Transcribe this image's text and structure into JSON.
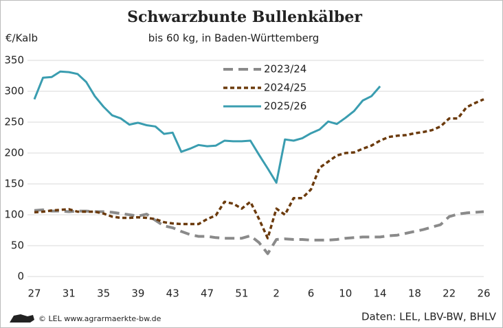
{
  "chart_data": {
    "type": "line",
    "title": "Schwarzbunte Bullenkälber",
    "subtitle": "bis 60 kg, in Baden-Württemberg",
    "y_label": "€/Kalb",
    "footer": "© LEL www.agrarmaerkte-bw.de",
    "source": "Daten: LEL, LBV-BW, BHLV",
    "categories": [
      "27",
      null,
      null,
      null,
      "31",
      null,
      null,
      null,
      "35",
      null,
      null,
      null,
      "39",
      null,
      null,
      null,
      "43",
      null,
      null,
      null,
      "47",
      null,
      null,
      null,
      "51",
      null,
      null,
      null,
      "2",
      null,
      null,
      null,
      "6",
      null,
      null,
      null,
      "10",
      null,
      null,
      null,
      "14",
      null,
      null,
      null,
      "18",
      null,
      null,
      null,
      "22",
      null,
      null,
      null,
      "26"
    ],
    "ylim": [
      0,
      350
    ],
    "yticks": [
      0,
      50,
      100,
      150,
      200,
      250,
      300,
      350
    ],
    "grid": true,
    "legend": "top-center",
    "series": [
      {
        "name": "2023/24",
        "color": "#8a8a8a",
        "dash": "dashed",
        "values": [
          107,
          108,
          106,
          106,
          105,
          106,
          106,
          105,
          105,
          104,
          102,
          100,
          98,
          101,
          91,
          82,
          79,
          73,
          68,
          65,
          65,
          63,
          62,
          62,
          62,
          66,
          55,
          37,
          60,
          61,
          60,
          60,
          59,
          59,
          59,
          60,
          62,
          63,
          64,
          64,
          64,
          66,
          67,
          70,
          73,
          76,
          80,
          84,
          97,
          101,
          103,
          104,
          105
        ]
      },
      {
        "name": "2024/25",
        "color": "#6b3a0c",
        "dash": "dotted",
        "values": [
          104,
          105,
          107,
          108,
          109,
          105,
          105,
          105,
          102,
          97,
          95,
          95,
          96,
          95,
          93,
          88,
          86,
          85,
          85,
          85,
          93,
          99,
          121,
          118,
          110,
          121,
          93,
          62,
          110,
          100,
          127,
          127,
          141,
          176,
          186,
          196,
          200,
          201,
          207,
          212,
          220,
          226,
          228,
          229,
          232,
          234,
          237,
          243,
          256,
          256,
          274,
          281,
          287
        ]
      },
      {
        "name": "2025/26",
        "color": "#3a9db0",
        "dash": "solid",
        "values": [
          287,
          322,
          323,
          332,
          331,
          328,
          315,
          292,
          275,
          261,
          256,
          246,
          249,
          245,
          243,
          231,
          233,
          202,
          207,
          213,
          211,
          212,
          220,
          219,
          219,
          220,
          197,
          175,
          152,
          222,
          220,
          224,
          232,
          238,
          251,
          247,
          257,
          268,
          285,
          292,
          308,
          null,
          null,
          null,
          null,
          null,
          null,
          null,
          null,
          null,
          null,
          null,
          null
        ]
      }
    ]
  }
}
